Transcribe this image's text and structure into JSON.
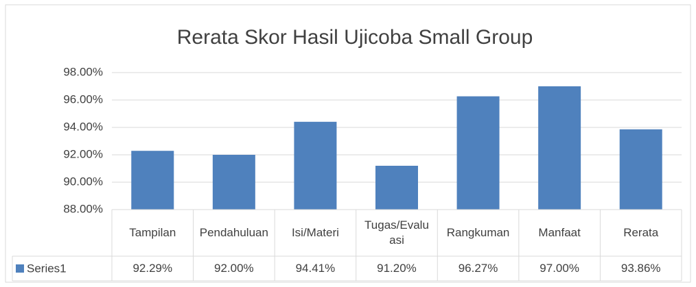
{
  "chart_data": {
    "type": "bar",
    "title": "Rerata Skor Hasil Ujicoba Small Group",
    "categories": [
      "Tampilan",
      "Pendahuluan",
      "Isi/Materi",
      "Tugas/Evaluasi",
      "Rangkuman",
      "Manfaat",
      "Rerata"
    ],
    "series": [
      {
        "name": "Series1",
        "color": "#4f81bd",
        "values": [
          92.29,
          92.0,
          94.41,
          91.2,
          96.27,
          97.0,
          93.86
        ],
        "value_labels": [
          "92.29%",
          "92.00%",
          "94.41%",
          "91.20%",
          "96.27%",
          "97.00%",
          "93.86%"
        ]
      }
    ],
    "ylim": [
      88,
      98
    ],
    "yticks": [
      {
        "value": 88,
        "label": "88.00%"
      },
      {
        "value": 90,
        "label": "90.00%"
      },
      {
        "value": 92,
        "label": "92.00%"
      },
      {
        "value": 94,
        "label": "94.00%"
      },
      {
        "value": 96,
        "label": "96.00%"
      },
      {
        "value": 98,
        "label": "98.00%"
      }
    ],
    "grid": true
  }
}
